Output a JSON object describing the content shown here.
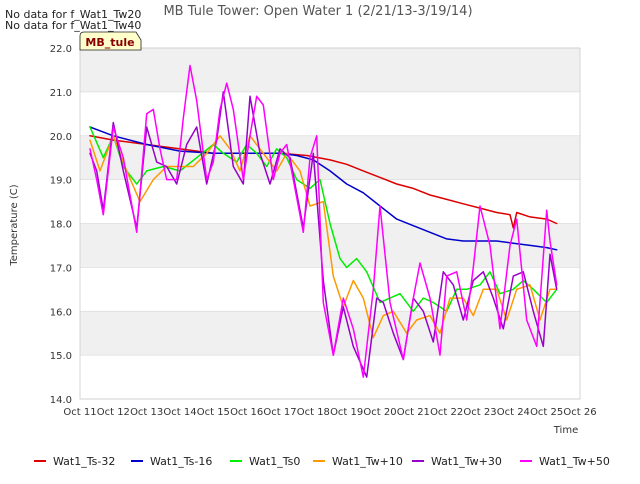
{
  "chart_data": {
    "type": "line",
    "title": "MB Tule Tower: Open Water 1 (2/21/13-3/19/14)",
    "notes": [
      "No data for f_Wat1_Tw20",
      "No data for f_Wat1_Tw40"
    ],
    "site_label": "MB_tule",
    "xlabel": "Time",
    "ylabel": "Temperature (C)",
    "xlim": [
      11,
      26
    ],
    "ylim": [
      14.0,
      22.0
    ],
    "x_ticks": [
      11,
      12,
      13,
      14,
      15,
      16,
      17,
      18,
      19,
      20,
      21,
      22,
      23,
      24,
      25,
      26
    ],
    "x_tick_labels": [
      "Oct 11",
      "Oct 12",
      "Oct 13",
      "Oct 14",
      "Oct 15",
      "Oct 16",
      "Oct 17",
      "Oct 18",
      "Oct 19",
      "Oct 20",
      "Oct 21",
      "Oct 22",
      "Oct 23",
      "Oct 24",
      "Oct 25",
      "Oct 26"
    ],
    "y_ticks": [
      14.0,
      15.0,
      16.0,
      17.0,
      18.0,
      19.0,
      20.0,
      21.0,
      22.0
    ],
    "y_tick_labels": [
      "14.0",
      "15.0",
      "16.0",
      "17.0",
      "18.0",
      "19.0",
      "20.0",
      "21.0",
      "22.0"
    ],
    "grid": true,
    "legend_position": "bottom",
    "series": [
      {
        "name": "Wat1_Ts-32",
        "color": "#dd0000",
        "x": [
          11.3,
          12,
          13,
          14,
          15,
          16,
          17,
          17.8,
          18.5,
          19,
          19.5,
          20,
          20.5,
          21,
          21.5,
          22,
          22.5,
          23,
          23.5,
          23.9,
          24,
          24.1,
          24.5,
          25,
          25.3
        ],
        "y": [
          20.0,
          19.9,
          19.8,
          19.7,
          19.6,
          19.6,
          19.6,
          19.55,
          19.45,
          19.35,
          19.2,
          19.05,
          18.9,
          18.8,
          18.65,
          18.55,
          18.45,
          18.35,
          18.25,
          18.2,
          17.9,
          18.25,
          18.15,
          18.1,
          18.0
        ]
      },
      {
        "name": "Wat1_Ts-16",
        "color": "#0000cc",
        "x": [
          11.3,
          12,
          13,
          14,
          15,
          16,
          17,
          17.5,
          18,
          18.5,
          19,
          19.5,
          20,
          20.5,
          21,
          21.5,
          22,
          22.5,
          23,
          23.5,
          24,
          24.5,
          25,
          25.3
        ],
        "y": [
          20.2,
          20.0,
          19.8,
          19.65,
          19.6,
          19.6,
          19.6,
          19.55,
          19.45,
          19.2,
          18.9,
          18.7,
          18.4,
          18.1,
          17.95,
          17.8,
          17.65,
          17.6,
          17.6,
          17.6,
          17.55,
          17.5,
          17.45,
          17.4
        ]
      },
      {
        "name": "Wat1_Ts0",
        "color": "#00ee00",
        "x": [
          11.3,
          11.7,
          12,
          12.3,
          12.7,
          13,
          13.5,
          14,
          14.5,
          15,
          15.3,
          15.7,
          16,
          16.3,
          16.6,
          16.9,
          17.2,
          17.5,
          17.9,
          18.2,
          18.5,
          18.8,
          19,
          19.3,
          19.6,
          20,
          20.3,
          20.6,
          21,
          21.3,
          21.6,
          22,
          22.3,
          22.6,
          23,
          23.3,
          23.6,
          24,
          24.3,
          24.6,
          25,
          25.3
        ],
        "y": [
          20.2,
          19.5,
          20.0,
          19.3,
          18.9,
          19.2,
          19.3,
          19.2,
          19.5,
          19.8,
          19.6,
          19.4,
          19.8,
          19.6,
          19.3,
          19.7,
          19.5,
          19.0,
          18.8,
          19.0,
          18.0,
          17.2,
          17.0,
          17.2,
          16.9,
          16.2,
          16.3,
          16.4,
          16.0,
          16.3,
          16.2,
          16.0,
          16.5,
          16.5,
          16.6,
          16.9,
          16.4,
          16.5,
          16.7,
          16.5,
          16.2,
          16.5
        ]
      },
      {
        "name": "Wat1_Tw+10",
        "color": "#ff9900",
        "x": [
          11.3,
          11.6,
          12,
          12.4,
          12.8,
          13.2,
          13.6,
          14,
          14.4,
          14.8,
          15.2,
          15.5,
          15.8,
          16.1,
          16.5,
          16.9,
          17.2,
          17.6,
          17.9,
          18.3,
          18.6,
          18.9,
          19.2,
          19.5,
          19.8,
          20.1,
          20.4,
          20.8,
          21.1,
          21.5,
          21.8,
          22.1,
          22.5,
          22.8,
          23.1,
          23.5,
          23.8,
          24.1,
          24.5,
          24.8,
          25.1,
          25.3
        ],
        "y": [
          19.9,
          19.2,
          20.0,
          19.2,
          18.5,
          19.0,
          19.3,
          19.3,
          19.3,
          19.6,
          20.0,
          19.7,
          19.2,
          20.0,
          19.6,
          19.2,
          19.6,
          19.2,
          18.4,
          18.5,
          16.8,
          16.1,
          16.7,
          16.3,
          15.4,
          15.9,
          16.0,
          15.5,
          15.8,
          15.9,
          15.5,
          16.3,
          16.3,
          15.9,
          16.5,
          16.5,
          15.8,
          16.5,
          16.6,
          15.8,
          16.5,
          16.5
        ]
      },
      {
        "name": "Wat1_Tw+30",
        "color": "#9900cc",
        "x": [
          11.3,
          11.5,
          11.7,
          12,
          12.3,
          12.7,
          13,
          13.3,
          13.6,
          13.9,
          14.2,
          14.5,
          14.8,
          15.1,
          15.3,
          15.6,
          15.9,
          16.1,
          16.4,
          16.7,
          17.0,
          17.3,
          17.7,
          18.0,
          18.3,
          18.6,
          18.9,
          19.2,
          19.6,
          19.9,
          20.1,
          20.4,
          20.7,
          21.0,
          21.3,
          21.6,
          21.9,
          22.2,
          22.5,
          22.8,
          23.1,
          23.4,
          23.7,
          24.0,
          24.3,
          24.6,
          24.9,
          25.1,
          25.3
        ],
        "y": [
          19.6,
          19.2,
          18.3,
          20.3,
          19.2,
          17.9,
          20.2,
          19.4,
          19.3,
          18.9,
          19.8,
          20.2,
          18.9,
          19.9,
          21.0,
          19.3,
          18.9,
          20.9,
          19.6,
          18.9,
          19.7,
          19.5,
          17.9,
          19.6,
          16.7,
          15.0,
          16.1,
          15.2,
          14.5,
          16.3,
          16.2,
          15.5,
          14.9,
          16.3,
          16.0,
          15.3,
          16.9,
          16.6,
          15.8,
          16.7,
          16.9,
          16.3,
          15.6,
          16.8,
          16.9,
          16.0,
          15.2,
          17.3,
          16.5
        ]
      },
      {
        "name": "Wat1_Tw+50",
        "color": "#ff00ff",
        "x": [
          11.3,
          11.5,
          11.7,
          12,
          12.3,
          12.7,
          13,
          13.2,
          13.4,
          13.6,
          13.9,
          14.1,
          14.3,
          14.5,
          14.8,
          15.0,
          15.2,
          15.4,
          15.6,
          15.9,
          16.1,
          16.3,
          16.5,
          16.8,
          17.0,
          17.2,
          17.4,
          17.7,
          17.9,
          18.1,
          18.3,
          18.6,
          18.9,
          19.2,
          19.5,
          19.8,
          20.0,
          20.3,
          20.7,
          21.0,
          21.2,
          21.5,
          21.8,
          22.0,
          22.3,
          22.6,
          22.8,
          23.0,
          23.3,
          23.6,
          23.9,
          24.1,
          24.4,
          24.7,
          25.0,
          25.1,
          25.3
        ],
        "y": [
          19.7,
          19.0,
          18.2,
          20.2,
          19.5,
          17.8,
          20.5,
          20.6,
          19.7,
          19.0,
          19.0,
          20.4,
          21.6,
          20.8,
          19.0,
          19.4,
          20.6,
          21.2,
          20.6,
          19.0,
          20.0,
          20.9,
          20.7,
          19.0,
          19.6,
          19.8,
          19.0,
          17.8,
          19.5,
          20.0,
          16.2,
          15.0,
          16.3,
          15.6,
          14.5,
          16.5,
          18.4,
          16.2,
          14.9,
          16.3,
          17.1,
          16.3,
          15.0,
          16.8,
          16.9,
          15.8,
          17.0,
          18.4,
          17.5,
          15.6,
          17.5,
          18.1,
          15.8,
          15.2,
          18.3,
          17.6,
          16.6
        ]
      }
    ]
  }
}
